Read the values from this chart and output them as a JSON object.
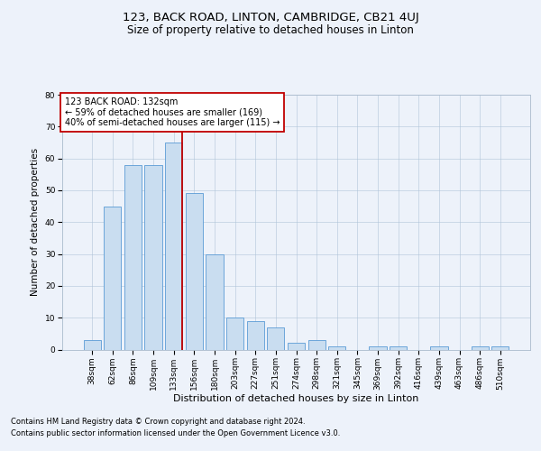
{
  "title1": "123, BACK ROAD, LINTON, CAMBRIDGE, CB21 4UJ",
  "title2": "Size of property relative to detached houses in Linton",
  "xlabel": "Distribution of detached houses by size in Linton",
  "ylabel": "Number of detached properties",
  "categories": [
    "38sqm",
    "62sqm",
    "86sqm",
    "109sqm",
    "133sqm",
    "156sqm",
    "180sqm",
    "203sqm",
    "227sqm",
    "251sqm",
    "274sqm",
    "298sqm",
    "321sqm",
    "345sqm",
    "369sqm",
    "392sqm",
    "416sqm",
    "439sqm",
    "463sqm",
    "486sqm",
    "510sqm"
  ],
  "values": [
    3,
    45,
    58,
    58,
    65,
    49,
    30,
    10,
    9,
    7,
    2,
    3,
    1,
    0,
    1,
    1,
    0,
    1,
    0,
    1,
    1
  ],
  "bar_color": "#c9ddf0",
  "bar_edge_color": "#5b9bd5",
  "property_line_index": 4,
  "property_line_color": "#c00000",
  "annotation_text": "123 BACK ROAD: 132sqm\n← 59% of detached houses are smaller (169)\n40% of semi-detached houses are larger (115) →",
  "annotation_box_color": "#ffffff",
  "annotation_box_edge": "#c00000",
  "ylim": [
    0,
    80
  ],
  "yticks": [
    0,
    10,
    20,
    30,
    40,
    50,
    60,
    70,
    80
  ],
  "background_color": "#edf2fa",
  "plot_bg_color": "#edf2fa",
  "footer1": "Contains HM Land Registry data © Crown copyright and database right 2024.",
  "footer2": "Contains public sector information licensed under the Open Government Licence v3.0.",
  "title1_fontsize": 9.5,
  "title2_fontsize": 8.5,
  "xlabel_fontsize": 8,
  "ylabel_fontsize": 7.5,
  "tick_fontsize": 6.5,
  "annotation_fontsize": 7,
  "footer_fontsize": 6
}
